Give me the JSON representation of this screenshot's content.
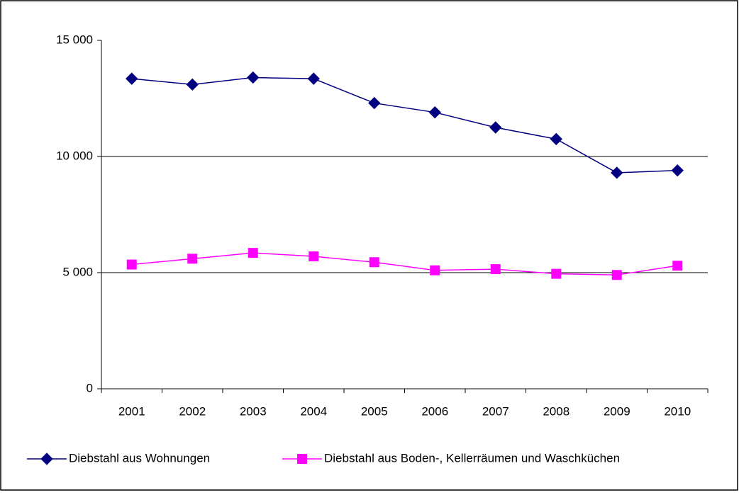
{
  "chart_data": {
    "type": "line",
    "categories": [
      "2001",
      "2002",
      "2003",
      "2004",
      "2005",
      "2006",
      "2007",
      "2008",
      "2009",
      "2010"
    ],
    "series": [
      {
        "name": "Diebstahl aus Wohnungen",
        "color": "#000080",
        "marker": "diamond",
        "values": [
          13350,
          13100,
          13400,
          13350,
          12300,
          11900,
          11250,
          10750,
          9300,
          9400
        ]
      },
      {
        "name": "Diebstahl aus Boden-, Kellerräumen und Waschküchen",
        "color": "#ff00ff",
        "marker": "square",
        "values": [
          5350,
          5600,
          5850,
          5700,
          5450,
          5100,
          5150,
          4950,
          4900,
          5300
        ]
      }
    ],
    "ylim": [
      0,
      15000
    ],
    "yticks": [
      0,
      {
        "value": 5000,
        "label": "5 000"
      },
      {
        "value": 10000,
        "label": "10 000"
      },
      {
        "value": 15000,
        "label": "15 000"
      }
    ],
    "grid": true,
    "legend": "bottom"
  }
}
